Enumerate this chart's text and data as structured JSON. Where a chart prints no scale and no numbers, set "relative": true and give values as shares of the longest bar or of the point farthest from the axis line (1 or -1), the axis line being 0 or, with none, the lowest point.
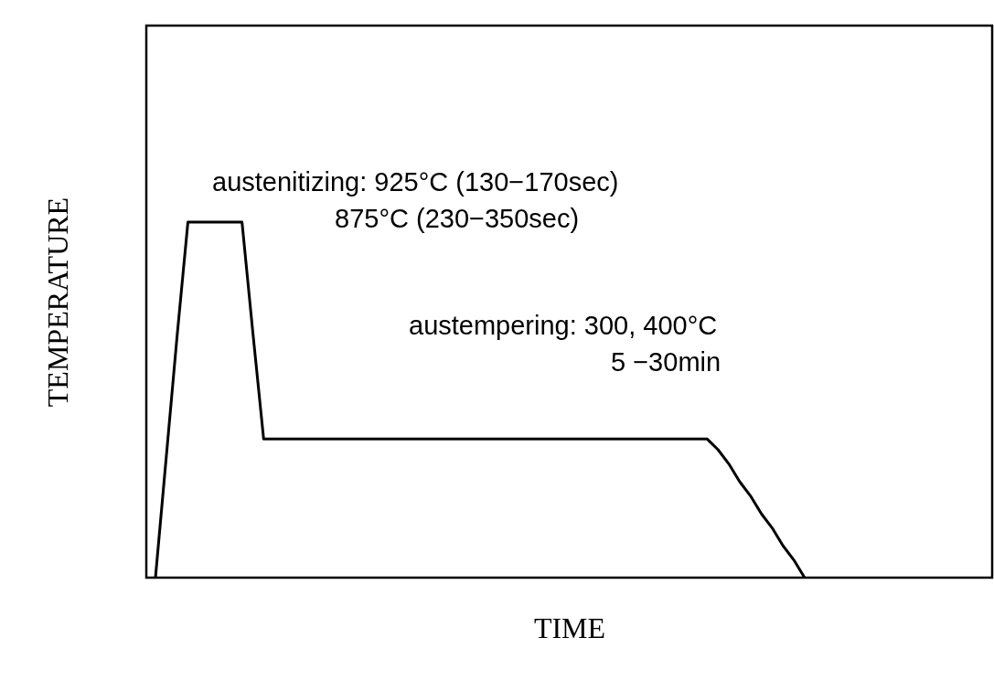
{
  "chart_data": {
    "type": "line",
    "relative": true,
    "xlabel": "TIME",
    "ylabel": "TEMPERATURE",
    "marker": "none",
    "line_style": "solid",
    "categories": [
      null,
      null,
      null,
      null,
      null,
      null,
      null,
      null,
      null,
      null,
      null,
      null,
      null,
      null,
      null,
      null,
      null,
      null,
      null,
      null,
      null,
      null,
      null,
      null,
      null,
      null,
      null,
      null,
      null,
      null,
      null,
      null,
      null,
      null,
      null,
      null,
      null,
      null,
      null,
      null,
      null,
      null,
      null,
      null,
      null,
      null,
      null,
      null,
      null,
      null,
      null,
      null,
      null,
      null,
      null,
      null,
      null,
      null,
      null,
      null,
      null
    ],
    "series": [
      {
        "color": "#000000",
        "values": [
          0,
          0.34,
          0.68,
          1,
          1,
          1,
          1,
          1,
          1,
          0.69,
          0.39,
          0.39,
          0.39,
          0.39,
          0.39,
          0.39,
          0.39,
          0.39,
          0.39,
          0.39,
          0.39,
          0.39,
          0.39,
          0.39,
          0.39,
          0.39,
          0.39,
          0.39,
          0.39,
          0.39,
          0.39,
          0.39,
          0.39,
          0.39,
          0.39,
          0.39,
          0.39,
          0.39,
          0.39,
          0.39,
          0.39,
          0.39,
          0.39,
          0.39,
          0.39,
          0.39,
          0.39,
          0.39,
          0.39,
          0.39,
          0.39,
          0.39,
          0.36,
          0.32,
          0.27,
          0.23,
          0.18,
          0.14,
          0.09,
          0.05,
          0
        ]
      }
    ],
    "annotations": [
      "austenitizing: 925°C (130−170sec)",
      "875°C (230−350sec)",
      "austempering: 300, 400°C",
      "5 −30min"
    ]
  }
}
